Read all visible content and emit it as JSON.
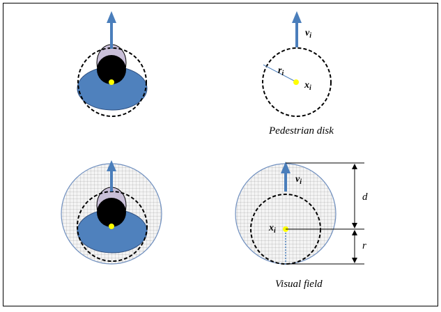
{
  "panels": {
    "pedestrian_disk": {
      "caption": "Pedestrian disk",
      "velocity_label": "v",
      "velocity_sub": "i",
      "radius_label": "r",
      "radius_sub": "i",
      "position_label": "x",
      "position_sub": "i"
    },
    "visual_field": {
      "caption": "Visual field",
      "velocity_label": "v",
      "velocity_sub": "i",
      "position_label": "x",
      "position_sub": "i",
      "distance_label": "d",
      "radius_label": "r"
    }
  },
  "colors": {
    "arrow": "#4a7ebb",
    "body": "#4f81bd",
    "head_top": "#c9bfd8",
    "head": "#000000",
    "center_dot": "#ffff00",
    "field_outline": "#6f8fbf",
    "grid": "#9a9a9a"
  },
  "icons": {
    "pedestrian": "pedestrian-top-view-icon",
    "direction": "arrow-up-icon"
  }
}
